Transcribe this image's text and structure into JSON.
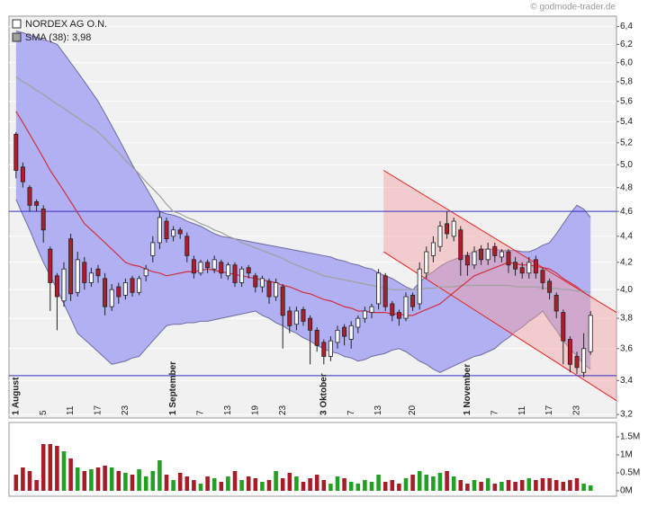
{
  "chart_data": {
    "type": "candlestick",
    "name": "NORDEX AG O.N.",
    "watermark": "© godmode-trader.de",
    "legend": "top-left",
    "log_scale": true,
    "grid": true,
    "up_color": "#ffffff",
    "down_color": "#b01c2a",
    "categories": [
      "1 August",
      null,
      null,
      null,
      "5",
      null,
      null,
      null,
      "11",
      null,
      null,
      null,
      "17",
      null,
      null,
      null,
      "23",
      null,
      null,
      null,
      null,
      null,
      null,
      "1 September",
      null,
      null,
      null,
      "7",
      null,
      null,
      null,
      "13",
      null,
      null,
      null,
      "19",
      null,
      null,
      null,
      "23",
      null,
      null,
      null,
      null,
      null,
      "3 Oktober",
      null,
      null,
      null,
      "7",
      null,
      null,
      null,
      "13",
      null,
      null,
      null,
      null,
      "20",
      null,
      null,
      null,
      null,
      null,
      null,
      null,
      "1 November",
      null,
      null,
      null,
      "7",
      null,
      null,
      null,
      "11",
      null,
      null,
      null,
      "17",
      null,
      null,
      null,
      "23",
      null,
      null
    ],
    "open": [
      5.28,
      4.98,
      4.8,
      4.68,
      4.62,
      4.3,
      4.1,
      3.92,
      4.38,
      3.98,
      4.2,
      4.05,
      4.15,
      4.08,
      3.88,
      4.02,
      3.96,
      4.08,
      3.98,
      4.1,
      4.25,
      4.35,
      4.52,
      4.4,
      4.45,
      4.4,
      4.22,
      4.12,
      4.2,
      4.15,
      4.2,
      4.1,
      4.18,
      4.05,
      4.16,
      4.1,
      4.02,
      4.06,
      3.95,
      4.02,
      3.85,
      3.76,
      3.86,
      3.8,
      3.72,
      3.64,
      3.55,
      3.64,
      3.74,
      3.66,
      3.74,
      3.8,
      3.84,
      3.9,
      4.1,
      3.9,
      3.84,
      3.8,
      3.96,
      3.9,
      4.12,
      4.25,
      4.32,
      4.5,
      4.4,
      4.45,
      4.25,
      4.18,
      4.3,
      4.22,
      4.32,
      4.24,
      4.28,
      4.2,
      4.16,
      4.12,
      4.22,
      4.14,
      4.06,
      3.96,
      3.84,
      3.66,
      3.55,
      3.45,
      3.58
    ],
    "high": [
      5.3,
      5.02,
      4.82,
      4.7,
      4.65,
      4.32,
      4.12,
      4.2,
      4.42,
      4.28,
      4.24,
      4.16,
      4.18,
      4.12,
      4.04,
      4.05,
      4.08,
      4.1,
      4.1,
      4.18,
      4.4,
      4.6,
      4.55,
      4.48,
      4.47,
      4.43,
      4.25,
      4.22,
      4.22,
      4.25,
      4.22,
      4.2,
      4.2,
      4.17,
      4.18,
      4.12,
      4.1,
      4.08,
      4.08,
      4.04,
      3.88,
      3.88,
      3.88,
      3.82,
      3.74,
      3.66,
      3.68,
      3.75,
      3.76,
      3.78,
      3.82,
      3.88,
      3.9,
      4.15,
      4.12,
      3.92,
      3.86,
      3.98,
      3.98,
      4.2,
      4.32,
      4.4,
      4.52,
      4.6,
      4.55,
      4.48,
      4.28,
      4.32,
      4.33,
      4.35,
      4.35,
      4.3,
      4.3,
      4.24,
      4.2,
      4.24,
      4.25,
      4.16,
      4.08,
      3.98,
      3.86,
      3.68,
      3.58,
      3.7,
      3.85
    ],
    "low": [
      4.88,
      4.8,
      4.6,
      4.6,
      4.35,
      3.85,
      3.72,
      3.88,
      3.92,
      3.95,
      4.0,
      4.02,
      4.05,
      3.82,
      3.85,
      3.9,
      3.93,
      3.95,
      3.96,
      4.06,
      4.2,
      4.3,
      4.35,
      4.36,
      4.38,
      4.2,
      4.08,
      4.1,
      4.12,
      4.12,
      4.08,
      4.07,
      4.02,
      4.02,
      4.08,
      3.98,
      3.98,
      3.9,
      3.92,
      3.6,
      3.7,
      3.72,
      3.75,
      3.5,
      3.58,
      3.5,
      3.52,
      3.6,
      3.62,
      3.6,
      3.7,
      3.77,
      3.8,
      3.86,
      3.85,
      3.78,
      3.75,
      3.78,
      3.85,
      3.86,
      4.08,
      4.2,
      4.28,
      4.38,
      4.36,
      4.1,
      4.1,
      4.15,
      4.18,
      4.18,
      4.2,
      4.2,
      4.12,
      4.1,
      4.08,
      4.08,
      4.08,
      4.0,
      3.93,
      3.8,
      3.5,
      3.45,
      3.44,
      3.42,
      3.56
    ],
    "close": [
      4.95,
      4.85,
      4.65,
      4.65,
      4.45,
      4.05,
      3.95,
      4.15,
      3.97,
      4.22,
      4.05,
      4.12,
      4.1,
      3.88,
      4.0,
      3.95,
      4.05,
      3.98,
      4.08,
      4.15,
      4.35,
      4.55,
      4.38,
      4.45,
      4.42,
      4.25,
      4.12,
      4.2,
      4.16,
      4.22,
      4.12,
      4.18,
      4.05,
      4.15,
      4.12,
      4.02,
      4.08,
      3.95,
      4.05,
      3.82,
      3.75,
      3.85,
      3.78,
      3.72,
      3.62,
      3.55,
      3.65,
      3.72,
      3.68,
      3.75,
      3.8,
      3.85,
      3.88,
      4.12,
      3.88,
      3.82,
      3.8,
      3.95,
      3.88,
      4.15,
      4.28,
      4.35,
      4.48,
      4.42,
      4.52,
      4.22,
      4.18,
      4.28,
      4.22,
      4.3,
      4.25,
      4.28,
      4.18,
      4.15,
      4.12,
      4.2,
      4.12,
      4.05,
      3.98,
      3.85,
      3.65,
      3.5,
      3.48,
      3.6,
      3.82
    ],
    "overlays": [
      {
        "name": "SMA (38): 3,98",
        "color": "#a0a0a0",
        "values": [
          5.85,
          5.8,
          5.76,
          5.71,
          5.67,
          5.62,
          5.57,
          5.53,
          5.48,
          5.44,
          5.39,
          5.35,
          5.3,
          5.24,
          5.17,
          5.11,
          5.04,
          4.98,
          4.92,
          4.85,
          4.79,
          4.73,
          4.66,
          4.6,
          4.58,
          4.55,
          4.53,
          4.5,
          4.48,
          4.45,
          4.43,
          4.4,
          4.38,
          4.35,
          4.33,
          4.31,
          4.29,
          4.27,
          4.25,
          4.23,
          4.2,
          4.18,
          4.16,
          4.14,
          4.12,
          4.1,
          4.09,
          4.08,
          4.07,
          4.06,
          4.05,
          4.04,
          4.03,
          4.02,
          4.01,
          4.0,
          4.0,
          4.0,
          4.0,
          4.0,
          4.01,
          4.01,
          4.02,
          4.02,
          4.02,
          4.03,
          4.03,
          4.03,
          4.03,
          4.03,
          4.03,
          4.03,
          4.03,
          4.02,
          4.02,
          4.02,
          4.02,
          4.01,
          4.01,
          4.01,
          4.0,
          4.0,
          3.99,
          3.99,
          3.98
        ]
      },
      {
        "color": "#d03040",
        "values": [
          5.5,
          5.39,
          5.28,
          5.17,
          5.06,
          4.95,
          4.86,
          4.77,
          4.68,
          4.59,
          4.5,
          4.45,
          4.4,
          4.35,
          4.3,
          4.25,
          4.2,
          4.18,
          4.17,
          4.15,
          4.13,
          4.12,
          4.1,
          4.11,
          4.12,
          4.13,
          4.13,
          4.14,
          4.15,
          4.14,
          4.13,
          4.12,
          4.11,
          4.1,
          4.09,
          4.08,
          4.07,
          4.06,
          4.05,
          4.03,
          4.02,
          4.0,
          3.98,
          3.97,
          3.95,
          3.93,
          3.92,
          3.9,
          3.88,
          3.87,
          3.85,
          3.85,
          3.84,
          3.84,
          3.84,
          3.83,
          3.83,
          3.82,
          3.82,
          3.84,
          3.86,
          3.88,
          3.9,
          3.94,
          3.98,
          4.02,
          4.06,
          4.1,
          4.12,
          4.14,
          4.16,
          4.18,
          4.2,
          4.19,
          4.18,
          4.18,
          4.17,
          4.16,
          4.15,
          4.12,
          4.08,
          4.05,
          4.02,
          3.98,
          3.95
        ]
      }
    ],
    "band": {
      "color": "#a8a8f2",
      "edge": "#6c6ca0",
      "upper": [
        6.35,
        6.33,
        6.3,
        6.28,
        6.25,
        6.23,
        6.2,
        6.1,
        6.0,
        5.9,
        5.8,
        5.7,
        5.6,
        5.48,
        5.36,
        5.24,
        5.12,
        5.0,
        4.9,
        4.8,
        4.7,
        4.6,
        4.58,
        4.57,
        4.55,
        4.52,
        4.5,
        4.48,
        4.45,
        4.42,
        4.4,
        4.39,
        4.38,
        4.37,
        4.36,
        4.35,
        4.34,
        4.33,
        4.32,
        4.31,
        4.3,
        4.29,
        4.28,
        4.27,
        4.26,
        4.25,
        4.24,
        4.22,
        4.21,
        4.19,
        4.18,
        4.16,
        4.15,
        4.12,
        4.1,
        4.08,
        4.05,
        4.02,
        4.0,
        4.05,
        4.1,
        4.13,
        4.17,
        4.2,
        4.22,
        4.24,
        4.26,
        4.28,
        4.3,
        4.3,
        4.3,
        4.29,
        4.29,
        4.29,
        4.28,
        4.28,
        4.3,
        4.33,
        4.35,
        4.42,
        4.5,
        4.58,
        4.65,
        4.62,
        4.55
      ],
      "lower": [
        4.7,
        4.57,
        4.45,
        4.32,
        4.2,
        4.1,
        4.0,
        3.9,
        3.8,
        3.7,
        3.66,
        3.62,
        3.58,
        3.54,
        3.5,
        3.51,
        3.52,
        3.54,
        3.55,
        3.6,
        3.65,
        3.7,
        3.75,
        3.76,
        3.76,
        3.77,
        3.77,
        3.78,
        3.78,
        3.79,
        3.8,
        3.81,
        3.82,
        3.83,
        3.84,
        3.85,
        3.82,
        3.8,
        3.77,
        3.75,
        3.72,
        3.7,
        3.67,
        3.65,
        3.62,
        3.6,
        3.58,
        3.57,
        3.55,
        3.54,
        3.52,
        3.53,
        3.55,
        3.56,
        3.57,
        3.59,
        3.6,
        3.58,
        3.55,
        3.52,
        3.5,
        3.47,
        3.45,
        3.47,
        3.49,
        3.51,
        3.53,
        3.55,
        3.56,
        3.58,
        3.6,
        3.64,
        3.67,
        3.71,
        3.74,
        3.78,
        3.81,
        3.85,
        3.78,
        3.72,
        3.65,
        3.6,
        3.55,
        3.5,
        3.47
      ]
    },
    "hlines": [
      4.6,
      3.43
    ],
    "hline_color": "#3030c0",
    "channel": {
      "upper": [
        4.95,
        3.84
      ],
      "lower": [
        4.28,
        3.28
      ],
      "color": "#e82020"
    },
    "ylim": [
      3.18,
      6.52
    ],
    "yticks": [
      {
        "value": 6.4,
        "label": "6,4"
      },
      {
        "value": 6.2,
        "label": "6,2"
      },
      {
        "value": 6.0,
        "label": "6,0"
      },
      {
        "value": 5.8,
        "label": "5,8"
      },
      {
        "value": 5.6,
        "label": "5,6"
      },
      {
        "value": 5.4,
        "label": "5,4"
      },
      {
        "value": 5.2,
        "label": "5,2"
      },
      {
        "value": 5.0,
        "label": "5,0"
      },
      {
        "value": 4.8,
        "label": "4,8"
      },
      {
        "value": 4.6,
        "label": "4,6"
      },
      {
        "value": 4.4,
        "label": "4,4"
      },
      {
        "value": 4.2,
        "label": "4,2"
      },
      {
        "value": 4.0,
        "label": "4,0"
      },
      {
        "value": 3.8,
        "label": "3,8"
      },
      {
        "value": 3.6,
        "label": "3,6"
      },
      {
        "value": 3.4,
        "label": "3,4"
      },
      {
        "value": 3.2,
        "label": "3,2"
      }
    ],
    "volume": {
      "up_color": "#22a022",
      "down_color": "#a81c28",
      "ylim": [
        0,
        1850000
      ],
      "yticks": [
        {
          "value": 0,
          "label": "0M"
        },
        {
          "value": 500000,
          "label": "0.5M"
        },
        {
          "value": 1000000,
          "label": "1M"
        },
        {
          "value": 1500000,
          "label": "1.5M"
        }
      ],
      "values": [
        450000,
        650000,
        550000,
        300000,
        1300000,
        1300000,
        1250000,
        1100000,
        900000,
        650000,
        550000,
        600000,
        650000,
        700000,
        650000,
        550000,
        500000,
        450000,
        600000,
        400000,
        550000,
        850000,
        450000,
        300000,
        500000,
        400000,
        300000,
        200000,
        400000,
        350000,
        250000,
        400000,
        550000,
        300000,
        400000,
        350000,
        250000,
        300000,
        550000,
        350000,
        500000,
        400000,
        250000,
        350000,
        450000,
        300000,
        200000,
        400000,
        350000,
        250000,
        200000,
        300000,
        250000,
        450000,
        250000,
        300000,
        200000,
        350000,
        450000,
        550000,
        450000,
        400000,
        500000,
        550000,
        400000,
        300000,
        200000,
        300000,
        250000,
        350000,
        200000,
        250000,
        300000,
        250000,
        300000,
        350000,
        300000,
        350000,
        350000,
        300000,
        250000,
        300000,
        350000,
        200000,
        150000
      ]
    }
  }
}
